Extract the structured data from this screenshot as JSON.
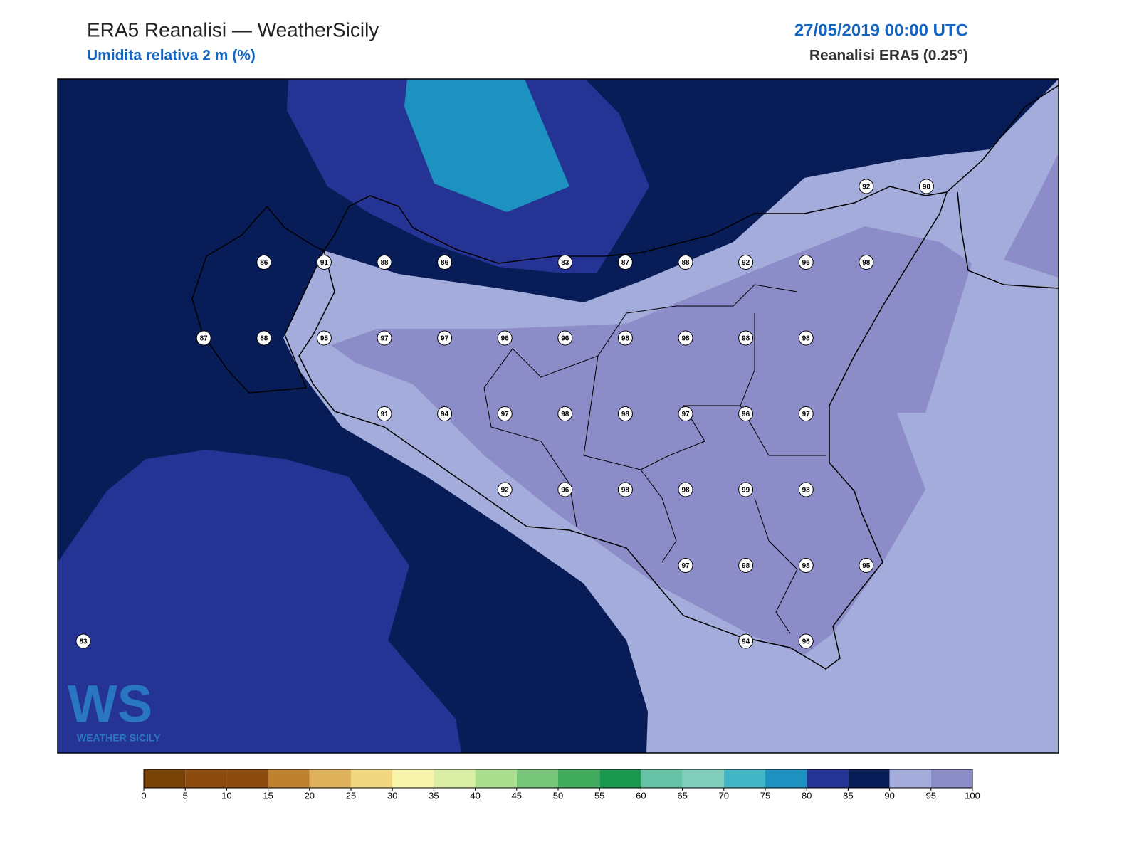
{
  "header": {
    "title": "ERA5 Reanalisi — WeatherSicily",
    "subtitle": "Umidita relativa 2 m (%)",
    "datetime": "27/05/2019 00:00 UTC",
    "source": "Reanalisi ERA5 (0.25°)"
  },
  "logo": {
    "mark": "WS",
    "text": "WEATHER SICILY"
  },
  "stations": [
    [
      null,
      null,
      null,
      null,
      null,
      null,
      null,
      null,
      null,
      null,
      null,
      null,
      null,
      92,
      90
    ],
    [
      null,
      null,
      null,
      86,
      91,
      88,
      86,
      null,
      83,
      87,
      88,
      92,
      96,
      98,
      null
    ],
    [
      null,
      null,
      87,
      88,
      95,
      97,
      97,
      96,
      96,
      98,
      98,
      98,
      98,
      null,
      null
    ],
    [
      null,
      null,
      null,
      null,
      null,
      91,
      94,
      97,
      98,
      98,
      97,
      96,
      97,
      null,
      null
    ],
    [
      null,
      null,
      null,
      null,
      null,
      null,
      null,
      92,
      96,
      98,
      98,
      99,
      98,
      null,
      null
    ],
    [
      null,
      null,
      null,
      null,
      null,
      null,
      null,
      null,
      null,
      null,
      97,
      98,
      98,
      95,
      null
    ],
    [
      83,
      null,
      null,
      null,
      null,
      null,
      null,
      null,
      null,
      null,
      null,
      94,
      96,
      null,
      null
    ]
  ],
  "colorbar": {
    "ticks": [
      0,
      5,
      10,
      15,
      20,
      25,
      30,
      35,
      40,
      45,
      50,
      55,
      60,
      65,
      70,
      75,
      80,
      85,
      90,
      95,
      100
    ],
    "colors": [
      "#784207",
      "#8c4a0c",
      "#8c4a0c",
      "#bf812d",
      "#dfb15a",
      "#f0d780",
      "#f6f4a8",
      "#d9eea3",
      "#abde8e",
      "#78c679",
      "#41ab5d",
      "#1a9850",
      "#66c2a4",
      "#7fcdbb",
      "#41b6c4",
      "#1d91c0",
      "#253494",
      "#081d58",
      "#a3acdb",
      "#8c8cc8"
    ]
  }
}
